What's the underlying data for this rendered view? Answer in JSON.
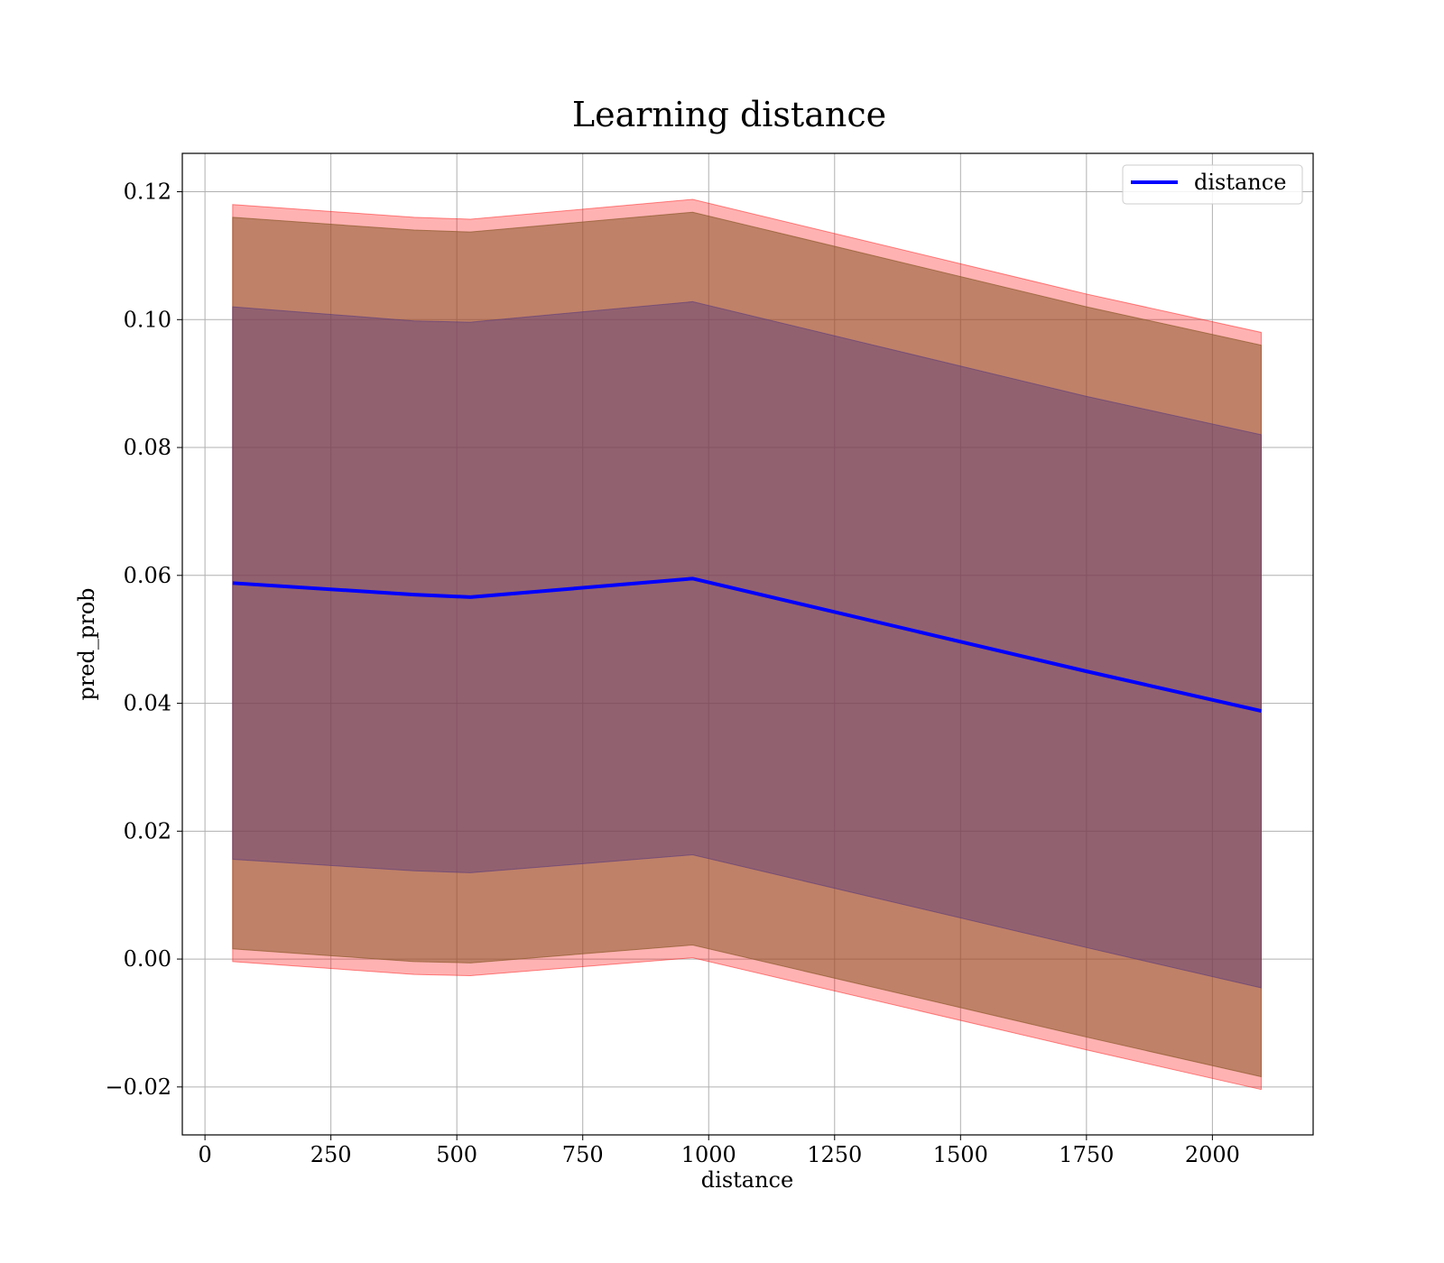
{
  "chart_data": {
    "type": "line",
    "title": "Learning distance",
    "xlabel": "distance",
    "ylabel": "pred_prob",
    "xlim": [
      -45,
      2200
    ],
    "ylim": [
      -0.0275,
      0.126
    ],
    "grid": true,
    "legend_position": "upper right",
    "x_ticks": [
      0,
      250,
      500,
      750,
      1000,
      1250,
      1500,
      1750,
      2000
    ],
    "y_ticks": [
      -0.02,
      0.0,
      0.02,
      0.04,
      0.06,
      0.08,
      0.1,
      0.12
    ],
    "y_tick_labels": [
      "−0.02",
      "0.00",
      "0.02",
      "0.04",
      "0.06",
      "0.08",
      "0.10",
      "0.12"
    ],
    "series": [
      {
        "name": "distance",
        "color": "#0000ff",
        "x": [
          55,
          415,
          527,
          968,
          1750,
          2097
        ],
        "y": [
          0.0588,
          0.057,
          0.0566,
          0.0595,
          0.045,
          0.0388
        ]
      }
    ],
    "bands": [
      {
        "color": "#ff0000",
        "opacity": 0.3,
        "x": [
          55,
          415,
          527,
          968,
          1750,
          2097
        ],
        "upper": [
          0.118,
          0.116,
          0.1157,
          0.1188,
          0.104,
          0.098
        ],
        "lower": [
          -0.0004,
          -0.0024,
          -0.0026,
          0.0002,
          -0.0142,
          -0.0204
        ]
      },
      {
        "color": "#8b5a2b",
        "opacity": 0.55,
        "x": [
          55,
          415,
          527,
          968,
          1750,
          2097
        ],
        "upper": [
          0.116,
          0.114,
          0.1137,
          0.1168,
          0.102,
          0.096
        ],
        "lower": [
          0.0016,
          -0.0004,
          -0.0006,
          0.0022,
          -0.0122,
          -0.0184
        ]
      },
      {
        "color": "#5a3a7a",
        "opacity": 0.45,
        "x": [
          55,
          415,
          527,
          968,
          1750,
          2097
        ],
        "upper": [
          0.102,
          0.0998,
          0.0996,
          0.1028,
          0.088,
          0.082
        ],
        "lower": [
          0.0156,
          0.0138,
          0.0135,
          0.0163,
          0.0018,
          -0.0045
        ]
      }
    ]
  }
}
